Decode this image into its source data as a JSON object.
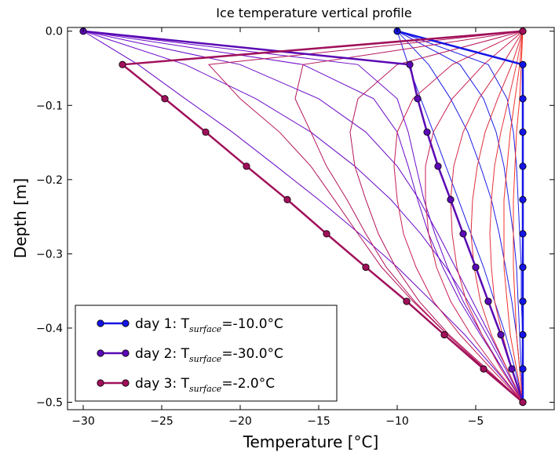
{
  "chart_data": {
    "type": "line",
    "title": "Ice temperature vertical profile",
    "xlabel": "Temperature [°C]",
    "ylabel": "Depth [m]",
    "xlim": [
      -31,
      0
    ],
    "ylim": [
      -0.51,
      0.005
    ],
    "xticks": [
      -30,
      -25,
      -20,
      -15,
      -10,
      -5
    ],
    "xtick_labels": [
      "−30",
      "−25",
      "−20",
      "−15",
      "−10",
      "−5"
    ],
    "yticks": [
      0.0,
      -0.1,
      -0.2,
      -0.3,
      -0.4,
      -0.5
    ],
    "ytick_labels": [
      "0.0",
      "−0.1",
      "−0.2",
      "−0.3",
      "−0.4",
      "−0.5"
    ],
    "grid": false,
    "legend_position": "lower-left",
    "depths": [
      0.0,
      -0.045,
      -0.091,
      -0.136,
      -0.182,
      -0.227,
      -0.273,
      -0.318,
      -0.364,
      -0.409,
      -0.455,
      -0.5
    ],
    "series": [
      {
        "name": "day 1: T_surface=-10.0°C",
        "legend_prefix": "day 1: T",
        "legend_sub": "surface",
        "legend_suffix": "=-10.0°C",
        "color": "#1414e6",
        "temperature": [
          -10.0,
          -2.0,
          -2.0,
          -2.0,
          -2.0,
          -2.0,
          -2.0,
          -2.0,
          -2.0,
          -2.0,
          -2.0,
          -2.0
        ]
      },
      {
        "name": "day 2: T_surface=-30.0°C",
        "legend_prefix": "day 2: T",
        "legend_sub": "surface",
        "legend_suffix": "=-30.0°C",
        "color": "#5a0ab4",
        "temperature": [
          -30.0,
          -9.2,
          -8.7,
          -8.1,
          -7.4,
          -6.6,
          -5.8,
          -5.0,
          -4.2,
          -3.4,
          -2.7,
          -2.0
        ]
      },
      {
        "name": "day 3: T_surface=-2.0°C",
        "legend_prefix": "day 3: T",
        "legend_sub": "surface",
        "legend_suffix": "=-2.0°C",
        "color": "#a0105a",
        "temperature": [
          -2.0,
          -27.5,
          -24.8,
          -22.2,
          -19.6,
          -17.0,
          -14.5,
          -12.0,
          -9.4,
          -7.0,
          -4.5,
          -2.0
        ]
      }
    ],
    "intermediate_profiles": [
      {
        "color": "#1e1ee6",
        "temperature": [
          -10.0,
          -9.3,
          -8.5,
          -7.7,
          -6.9,
          -6.1,
          -5.3,
          -4.5,
          -3.8,
          -3.1,
          -2.5,
          -2.0
        ]
      },
      {
        "color": "#1e1ee6",
        "temperature": [
          -10.0,
          -8.0,
          -6.6,
          -5.5,
          -4.7,
          -4.0,
          -3.5,
          -3.1,
          -2.7,
          -2.4,
          -2.2,
          -2.0
        ]
      },
      {
        "color": "#1e1ee6",
        "temperature": [
          -10.0,
          -6.0,
          -4.5,
          -3.7,
          -3.2,
          -2.9,
          -2.6,
          -2.4,
          -2.3,
          -2.2,
          -2.1,
          -2.0
        ]
      },
      {
        "color": "#1e1ee6",
        "temperature": [
          -10.0,
          -4.2,
          -3.0,
          -2.6,
          -2.4,
          -2.3,
          -2.2,
          -2.1,
          -2.1,
          -2.0,
          -2.0,
          -2.0
        ]
      },
      {
        "color": "#6a0ac8",
        "temperature": [
          -30.0,
          -26.5,
          -23.5,
          -20.5,
          -17.7,
          -15.0,
          -12.4,
          -10.0,
          -7.8,
          -5.7,
          -3.8,
          -2.0
        ]
      },
      {
        "color": "#6a0ac8",
        "temperature": [
          -30.0,
          -23.5,
          -19.0,
          -15.5,
          -12.7,
          -10.4,
          -8.5,
          -6.9,
          -5.5,
          -4.3,
          -3.1,
          -2.0
        ]
      },
      {
        "color": "#6a0ac8",
        "temperature": [
          -30.0,
          -20.0,
          -15.0,
          -12.0,
          -10.0,
          -8.6,
          -7.4,
          -6.3,
          -5.2,
          -4.1,
          -3.0,
          -2.0
        ]
      },
      {
        "color": "#6a0ac8",
        "temperature": [
          -30.0,
          -16.0,
          -11.5,
          -10.0,
          -9.3,
          -8.7,
          -8.0,
          -7.1,
          -6.0,
          -4.7,
          -3.3,
          -2.0
        ]
      },
      {
        "color": "#6a0ac8",
        "temperature": [
          -30.0,
          -12.5,
          -10.0,
          -9.3,
          -8.8,
          -8.3,
          -7.6,
          -6.8,
          -5.8,
          -4.6,
          -3.3,
          -2.0
        ]
      },
      {
        "color": "#b4145a",
        "temperature": [
          -2.0,
          -22.0,
          -20.0,
          -17.5,
          -15.5,
          -14.0,
          -12.5,
          -11.0,
          -9.0,
          -6.8,
          -4.4,
          -2.0
        ]
      },
      {
        "color": "#b4145a",
        "temperature": [
          -2.0,
          -16.0,
          -16.5,
          -15.5,
          -14.5,
          -13.2,
          -12.0,
          -10.7,
          -8.9,
          -6.8,
          -4.4,
          -2.0
        ]
      },
      {
        "color": "#b4145a",
        "temperature": [
          -2.0,
          -10.0,
          -12.5,
          -13.0,
          -12.7,
          -12.0,
          -11.2,
          -10.1,
          -8.6,
          -6.7,
          -4.3,
          -2.0
        ]
      },
      {
        "color": "#c81e50",
        "temperature": [
          -2.0,
          -6.5,
          -9.0,
          -10.0,
          -10.2,
          -10.0,
          -9.6,
          -8.8,
          -7.7,
          -6.0,
          -4.0,
          -2.0
        ]
      },
      {
        "color": "#c81e50",
        "temperature": [
          -2.0,
          -4.5,
          -6.5,
          -7.7,
          -8.2,
          -8.2,
          -8.0,
          -7.5,
          -6.6,
          -5.3,
          -3.7,
          -2.0
        ]
      },
      {
        "color": "#d22846",
        "temperature": [
          -2.0,
          -3.3,
          -4.8,
          -5.8,
          -6.4,
          -6.6,
          -6.5,
          -6.2,
          -5.6,
          -4.6,
          -3.4,
          -2.0
        ]
      },
      {
        "color": "#dc2d3c",
        "temperature": [
          -2.0,
          -2.7,
          -3.6,
          -4.4,
          -4.9,
          -5.2,
          -5.3,
          -5.1,
          -4.7,
          -4.0,
          -3.0,
          -2.0
        ]
      },
      {
        "color": "#e6323c",
        "temperature": [
          -2.0,
          -2.4,
          -2.9,
          -3.4,
          -3.8,
          -4.0,
          -4.1,
          -4.0,
          -3.8,
          -3.3,
          -2.7,
          -2.0
        ]
      },
      {
        "color": "#f03228",
        "temperature": [
          -2.0,
          -2.2,
          -2.5,
          -2.8,
          -3.0,
          -3.2,
          -3.2,
          -3.2,
          -3.0,
          -2.8,
          -2.4,
          -2.0
        ]
      },
      {
        "color": "#f53223",
        "temperature": [
          -2.0,
          -2.1,
          -2.2,
          -2.4,
          -2.5,
          -2.6,
          -2.6,
          -2.6,
          -2.5,
          -2.4,
          -2.2,
          -2.0
        ]
      }
    ]
  }
}
